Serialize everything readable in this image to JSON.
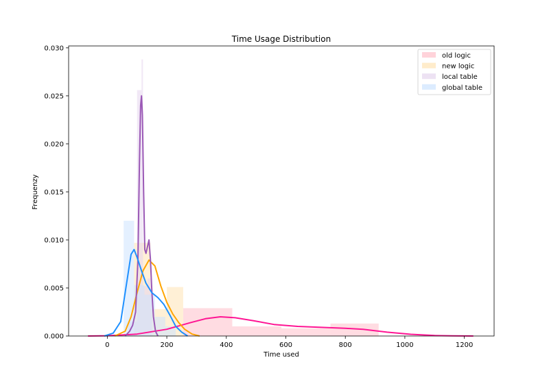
{
  "chart_data": {
    "type": "histogram-kde",
    "title": "Time Usage Distribution",
    "xlabel": "Time used",
    "ylabel": "Frequenzy",
    "xlim": [
      -130,
      1300
    ],
    "ylim": [
      0,
      0.0302
    ],
    "xticks": [
      0,
      200,
      400,
      600,
      800,
      1000,
      1200
    ],
    "yticks": [
      0.0,
      0.005,
      0.01,
      0.015,
      0.02,
      0.025,
      0.03
    ],
    "ytick_labels": [
      "0.000",
      "0.005",
      "0.010",
      "0.015",
      "0.020",
      "0.025",
      "0.030"
    ],
    "legend_position": "upper right",
    "series": [
      {
        "name": "old logic",
        "color": "#ff1493",
        "hist_color": "#ffc0cb",
        "bins": [
          {
            "x0": 255,
            "x1": 420,
            "y": 0.0029
          },
          {
            "x0": 420,
            "x1": 585,
            "y": 0.001
          },
          {
            "x0": 585,
            "x1": 750,
            "y": 0.0008
          },
          {
            "x0": 750,
            "x1": 912,
            "y": 0.0013
          }
        ],
        "kde": [
          [
            -65,
            0
          ],
          [
            0,
            3e-05
          ],
          [
            100,
            0.0002
          ],
          [
            200,
            0.0007
          ],
          [
            280,
            0.0014
          ],
          [
            330,
            0.0018
          ],
          [
            380,
            0.002
          ],
          [
            430,
            0.0019
          ],
          [
            490,
            0.0016
          ],
          [
            560,
            0.0012
          ],
          [
            640,
            0.001
          ],
          [
            720,
            0.0009
          ],
          [
            800,
            0.0008
          ],
          [
            860,
            0.0007
          ],
          [
            940,
            0.0004
          ],
          [
            1020,
            0.00018
          ],
          [
            1100,
            5e-05
          ],
          [
            1160,
            2e-05
          ],
          [
            1230,
            0
          ]
        ]
      },
      {
        "name": "new logic",
        "color": "#ffa500",
        "hist_color": "#ffe4b5",
        "bins": [
          {
            "x0": 90,
            "x1": 145,
            "y": 0.0097
          },
          {
            "x0": 145,
            "x1": 200,
            "y": 0.0028
          },
          {
            "x0": 200,
            "x1": 255,
            "y": 0.0051
          }
        ],
        "kde": [
          [
            25,
            0
          ],
          [
            60,
            0.0005
          ],
          [
            80,
            0.002
          ],
          [
            100,
            0.0045
          ],
          [
            120,
            0.0068
          ],
          [
            140,
            0.0079
          ],
          [
            160,
            0.0073
          ],
          [
            180,
            0.0052
          ],
          [
            200,
            0.0035
          ],
          [
            220,
            0.0023
          ],
          [
            240,
            0.0014
          ],
          [
            260,
            0.0007
          ],
          [
            285,
            0.0002
          ],
          [
            310,
            0
          ]
        ]
      },
      {
        "name": "local table",
        "color": "#9b59b6",
        "hist_color": "#e6d5ee",
        "bins": [
          {
            "x0": 70,
            "x1": 100,
            "y": 0.0015
          },
          {
            "x0": 100,
            "x1": 115,
            "y": 0.0256
          },
          {
            "x0": 115,
            "x1": 120,
            "y": 0.0288
          },
          {
            "x0": 120,
            "x1": 135,
            "y": 0.0052
          },
          {
            "x0": 135,
            "x1": 150,
            "y": 0.006
          }
        ],
        "kde": [
          [
            60,
            0
          ],
          [
            75,
            0.0005
          ],
          [
            85,
            0.0011
          ],
          [
            95,
            0.0025
          ],
          [
            103,
            0.008
          ],
          [
            108,
            0.018
          ],
          [
            112,
            0.024
          ],
          [
            115,
            0.025
          ],
          [
            118,
            0.023
          ],
          [
            122,
            0.015
          ],
          [
            126,
            0.009
          ],
          [
            130,
            0.0086
          ],
          [
            135,
            0.0093
          ],
          [
            140,
            0.01
          ],
          [
            145,
            0.008
          ],
          [
            150,
            0.0045
          ],
          [
            155,
            0.002
          ],
          [
            162,
            0.0005
          ],
          [
            170,
            0
          ]
        ]
      },
      {
        "name": "global table",
        "color": "#1e90ff",
        "hist_color": "#cde4ff",
        "bins": [
          {
            "x0": 55,
            "x1": 90,
            "y": 0.012
          },
          {
            "x0": 90,
            "x1": 125,
            "y": 0.0053
          },
          {
            "x0": 125,
            "x1": 160,
            "y": 0.0043
          },
          {
            "x0": 160,
            "x1": 195,
            "y": 0.002
          },
          {
            "x0": 195,
            "x1": 230,
            "y": 0.001
          }
        ],
        "kde": [
          [
            -10,
            0
          ],
          [
            20,
            0.0003
          ],
          [
            45,
            0.0015
          ],
          [
            65,
            0.0055
          ],
          [
            80,
            0.0085
          ],
          [
            90,
            0.009
          ],
          [
            100,
            0.0082
          ],
          [
            115,
            0.0068
          ],
          [
            130,
            0.0055
          ],
          [
            150,
            0.0045
          ],
          [
            170,
            0.004
          ],
          [
            190,
            0.0033
          ],
          [
            210,
            0.0022
          ],
          [
            230,
            0.001
          ],
          [
            250,
            0.0004
          ],
          [
            270,
            0
          ]
        ]
      }
    ]
  }
}
